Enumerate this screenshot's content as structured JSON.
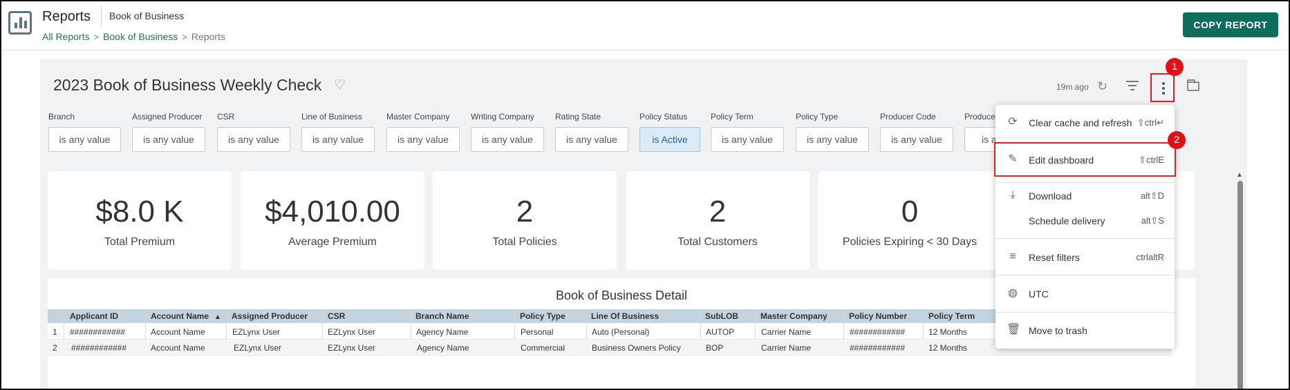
{
  "header": {
    "app_title": "Reports",
    "app_subtitle": "Book of Business",
    "breadcrumb": [
      "All Reports",
      "Book of Business",
      "Reports"
    ],
    "copy_button": "COPY REPORT"
  },
  "dashboard": {
    "title": "2023 Book of Business Weekly Check",
    "updated": "19m ago"
  },
  "filters": [
    {
      "label": "Branch",
      "value": "is any value"
    },
    {
      "label": "Assigned Producer",
      "value": "is any value"
    },
    {
      "label": "CSR",
      "value": "is any value"
    },
    {
      "label": "Line of Business",
      "value": "is any value"
    },
    {
      "label": "Master Company",
      "value": "is any value"
    },
    {
      "label": "Writing Company",
      "value": "is any value"
    },
    {
      "label": "Rating State",
      "value": "is any value"
    },
    {
      "label": "Policy Status",
      "value": "is Active"
    },
    {
      "label": "Policy Term",
      "value": "is any value"
    },
    {
      "label": "Policy Type",
      "value": "is any value"
    },
    {
      "label": "Producer Code",
      "value": "is any value"
    },
    {
      "label": "Produce",
      "value": "is an"
    }
  ],
  "kpis": [
    {
      "value": "$8.0 K",
      "label": "Total Premium"
    },
    {
      "value": "$4,010.00",
      "label": "Average Premium"
    },
    {
      "value": "2",
      "label": "Total Policies"
    },
    {
      "value": "2",
      "label": "Total Customers"
    },
    {
      "value": "0",
      "label": "Policies Expiring < 30 Days"
    }
  ],
  "table": {
    "title": "Book of Business Detail",
    "columns": [
      "Applicant ID",
      "Account Name",
      "Assigned Producer",
      "CSR",
      "Branch Name",
      "Policy Type",
      "Line Of Business",
      "SubLOB",
      "Master Company",
      "Policy Number",
      "Policy Term"
    ],
    "rows": [
      {
        "num": "1",
        "cells": [
          "############",
          "Account Name",
          "EZLynx User",
          "EZLynx User",
          "Agency Name",
          "Personal",
          "Auto (Personal)",
          "AUTOP",
          "Carrier Name",
          "############",
          "12 Months"
        ]
      },
      {
        "num": "2",
        "cells": [
          "############",
          "Account Name",
          "EZLynx User",
          "EZLynx User",
          "Agency Name",
          "Commercial",
          "Business Owners Policy",
          "BOP",
          "Carrier Name",
          "############",
          "12 Months"
        ]
      }
    ]
  },
  "menu": {
    "items": [
      {
        "label": "Clear cache and refresh",
        "shortcut": "⇧ctrl↵",
        "icon": "refresh-icon"
      },
      {
        "label": "Edit dashboard",
        "shortcut": "⇧ctrlE",
        "icon": "pencil-icon"
      },
      {
        "label": "Download",
        "shortcut": "alt⇧D",
        "icon": "download-icon"
      },
      {
        "label": "Schedule delivery",
        "shortcut": "alt⇧S",
        "icon": ""
      },
      {
        "label": "Reset filters",
        "shortcut": "ctrlaltR",
        "icon": "filter-icon"
      },
      {
        "label": "UTC",
        "shortcut": "",
        "icon": "globe-icon"
      },
      {
        "label": "Move to trash",
        "shortcut": "",
        "icon": "trash-icon"
      }
    ]
  },
  "annotations": [
    "1",
    "2"
  ],
  "colors": {
    "accent": "#0e6e5c",
    "link": "#1f6f63",
    "highlight": "#e02020",
    "table_header": "#c3d3e0"
  }
}
